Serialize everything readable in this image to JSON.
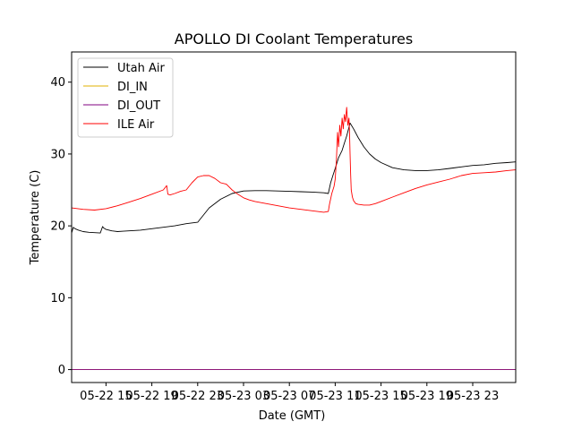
{
  "chart_data": {
    "type": "line",
    "title": "APOLLO DI Coolant Temperatures",
    "xlabel": "Date (GMT)",
    "ylabel": "Temperature (C)",
    "ylim": [
      -1.8,
      44.2
    ],
    "xlim_hours": [
      -3.0,
      35.75
    ],
    "x_reference": "05-22 15",
    "yticks": [
      0,
      10,
      20,
      30,
      40
    ],
    "xticks": [
      {
        "hours": 0,
        "label": "05-22 15"
      },
      {
        "hours": 4,
        "label": "05-22 19"
      },
      {
        "hours": 8,
        "label": "05-22 23"
      },
      {
        "hours": 12,
        "label": "05-23 03"
      },
      {
        "hours": 16,
        "label": "05-23 07"
      },
      {
        "hours": 20,
        "label": "05-23 11"
      },
      {
        "hours": 24,
        "label": "05-23 15"
      },
      {
        "hours": 28,
        "label": "05-23 19"
      },
      {
        "hours": 32,
        "label": "05-23 23"
      }
    ],
    "legend_position": "top-left",
    "series": [
      {
        "name": "Utah Air",
        "color": "#000000",
        "x_hours": [
          -3.0,
          -2.85,
          -2.7,
          -2.4,
          -2.0,
          -1.5,
          -1.0,
          -0.5,
          -0.3,
          -0.2,
          0.0,
          0.5,
          1.0,
          1.5,
          2.0,
          3.0,
          4.0,
          5.0,
          6.0,
          7.0,
          8.0,
          8.5,
          9.0,
          10.0,
          11.0,
          12.0,
          13.0,
          14.0,
          15.0,
          16.0,
          17.0,
          18.0,
          19.0,
          19.4,
          19.6,
          19.8,
          20.0,
          20.3,
          20.6,
          20.8,
          21.0,
          21.3,
          21.6,
          22.0,
          22.5,
          23.0,
          23.5,
          24.0,
          25.0,
          26.0,
          27.0,
          28.0,
          29.0,
          30.0,
          31.0,
          32.0,
          33.0,
          34.0,
          35.0,
          35.75
        ],
        "y": [
          19.0,
          19.8,
          19.6,
          19.4,
          19.2,
          19.1,
          19.05,
          19.0,
          19.9,
          19.7,
          19.5,
          19.3,
          19.2,
          19.25,
          19.3,
          19.4,
          19.6,
          19.8,
          20.0,
          20.3,
          20.5,
          21.5,
          22.5,
          23.7,
          24.5,
          24.85,
          24.9,
          24.9,
          24.85,
          24.8,
          24.75,
          24.7,
          24.6,
          24.5,
          26.0,
          27.0,
          28.0,
          29.5,
          30.5,
          31.5,
          32.5,
          34.3,
          33.5,
          32.3,
          31.0,
          30.0,
          29.3,
          28.8,
          28.1,
          27.8,
          27.7,
          27.7,
          27.8,
          28.0,
          28.2,
          28.4,
          28.5,
          28.7,
          28.8,
          28.9
        ]
      },
      {
        "name": "DI_IN",
        "color": "#e0b000",
        "x_hours": [
          -3.0,
          35.75
        ],
        "y": [
          0.0,
          0.0
        ]
      },
      {
        "name": "DI_OUT",
        "color": "#800080",
        "x_hours": [
          -3.0,
          35.75
        ],
        "y": [
          0.0,
          0.0
        ]
      },
      {
        "name": "ILE Air",
        "color": "#ff0000",
        "x_hours": [
          -3.0,
          -2.0,
          -1.0,
          0.0,
          1.0,
          2.0,
          3.0,
          4.0,
          5.0,
          5.3,
          5.4,
          5.6,
          6.0,
          6.5,
          7.0,
          7.5,
          8.0,
          8.5,
          9.0,
          9.5,
          10.0,
          10.5,
          11.0,
          11.5,
          12.0,
          12.5,
          13.0,
          14.0,
          15.0,
          16.0,
          17.0,
          18.0,
          19.0,
          19.4,
          19.5,
          19.7,
          19.9,
          20.0,
          20.1,
          20.2,
          20.3,
          20.4,
          20.5,
          20.6,
          20.7,
          20.8,
          20.9,
          21.0,
          21.1,
          21.2,
          21.25,
          21.3,
          21.35,
          21.4,
          21.5,
          21.6,
          21.8,
          22.0,
          22.5,
          23.0,
          23.5,
          24.0,
          25.0,
          26.0,
          27.0,
          28.0,
          29.0,
          30.0,
          31.0,
          32.0,
          33.0,
          34.0,
          35.0,
          35.75
        ],
        "y": [
          22.5,
          22.3,
          22.2,
          22.4,
          22.8,
          23.3,
          23.8,
          24.4,
          25.0,
          25.6,
          24.4,
          24.3,
          24.5,
          24.8,
          25.0,
          26.0,
          26.8,
          27.0,
          27.0,
          26.6,
          26.0,
          25.8,
          25.0,
          24.4,
          23.9,
          23.6,
          23.4,
          23.1,
          22.8,
          22.5,
          22.3,
          22.1,
          21.9,
          22.0,
          23.0,
          24.5,
          25.5,
          26.5,
          29.0,
          33.0,
          31.0,
          34.0,
          32.5,
          35.0,
          33.5,
          35.5,
          34.5,
          36.5,
          34.0,
          35.0,
          33.0,
          30.0,
          27.0,
          25.0,
          24.0,
          23.5,
          23.1,
          23.0,
          22.9,
          22.9,
          23.1,
          23.4,
          24.0,
          24.6,
          25.2,
          25.7,
          26.1,
          26.5,
          27.0,
          27.3,
          27.4,
          27.5,
          27.7,
          27.8
        ]
      }
    ]
  }
}
